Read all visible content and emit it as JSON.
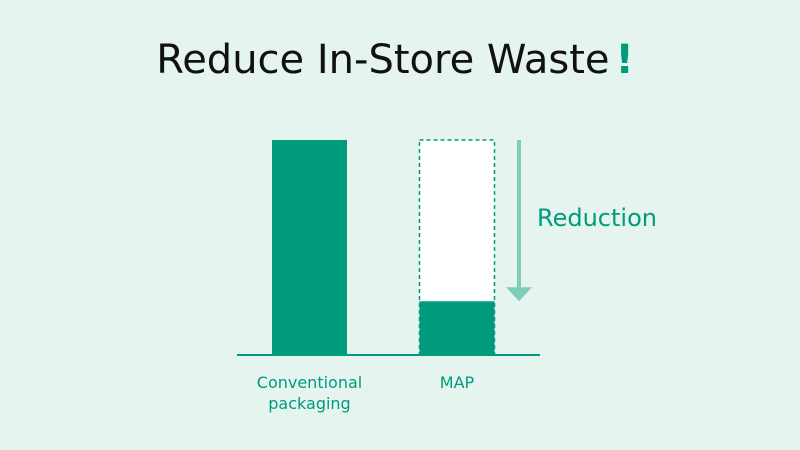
{
  "chart_data": {
    "type": "bar",
    "title": "Reduce In-Store Waste",
    "title_mark": "!",
    "categories": [
      "Conventional packaging",
      "MAP"
    ],
    "values": [
      100,
      25
    ],
    "color": "#009b7d",
    "reference_color": "#009b7d",
    "arrow_color": "#7fcdb9",
    "annotation": "Reduction",
    "ylim": [
      0,
      100
    ]
  }
}
